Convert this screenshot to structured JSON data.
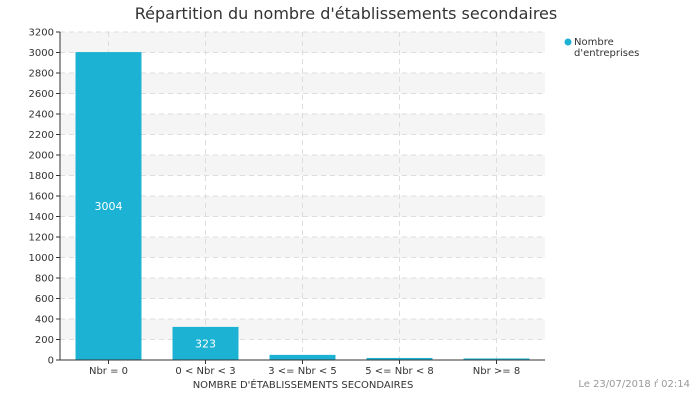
{
  "chart_data": {
    "type": "bar",
    "title": "Répartition du nombre d'établissements secondaires",
    "xlabel": "NOMBRE D'ÉTABLISSEMENTS SECONDAIRES",
    "ylabel": "",
    "categories": [
      "Nbr = 0",
      "0 < Nbr < 3",
      "3 <= Nbr < 5",
      "5 <= Nbr < 8",
      "Nbr >= 8"
    ],
    "series": [
      {
        "name": "Nombre d'entreprises",
        "legend_lines": [
          "Nombre",
          "d'entreprises"
        ],
        "values": [
          3004,
          323,
          50,
          20,
          15
        ],
        "data_labels": [
          "3004",
          "323",
          "",
          "",
          ""
        ],
        "color": "#1cb2d4"
      }
    ],
    "ylim": [
      0,
      3200
    ],
    "ytick_step": 200,
    "grid": true,
    "legend_position": "top-right"
  },
  "footer": "Le 23/07/2018 ŕ 02:14",
  "colors": {
    "bar": "#1cb2d4",
    "band": "#f5f5f5",
    "grid": "#dddddd",
    "axis": "#333333"
  }
}
